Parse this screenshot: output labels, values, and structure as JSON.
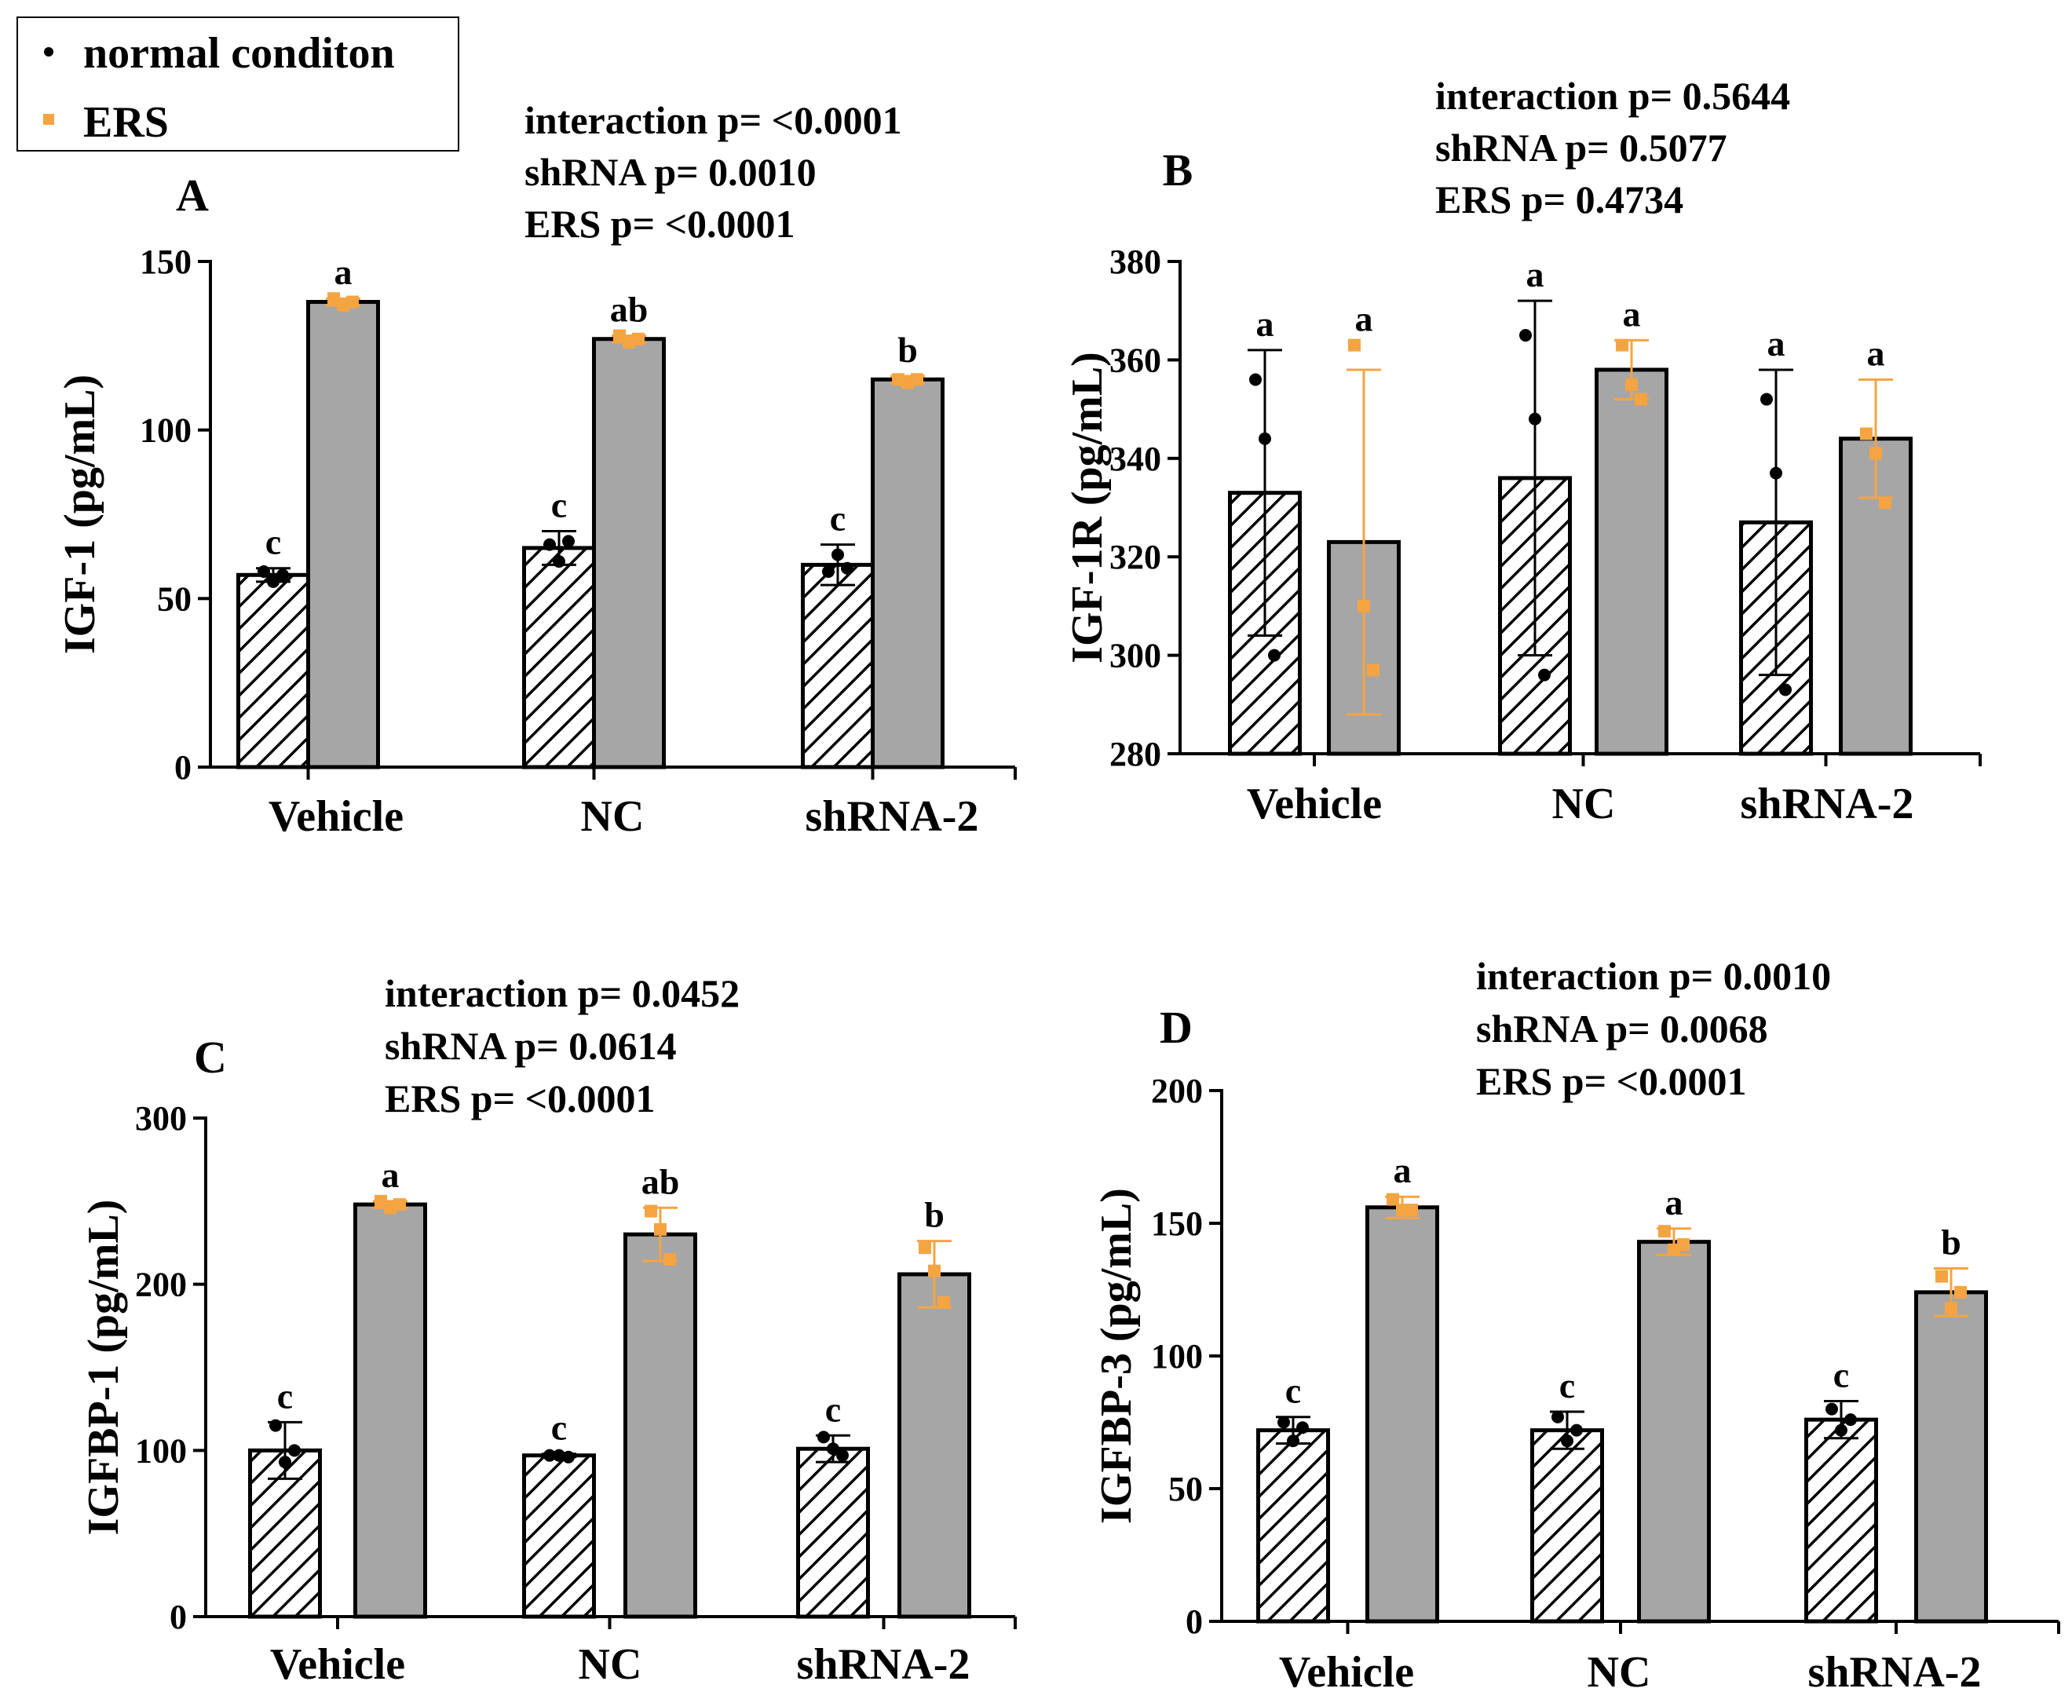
{
  "legend": {
    "items": [
      {
        "label": "normal conditon",
        "color": "#000000",
        "marker": "circle"
      },
      {
        "label": "ERS",
        "color": "#f5a442",
        "marker": "square"
      }
    ]
  },
  "colors": {
    "normal_bar": "hatched-white",
    "ers_bar": "#a6a6a6",
    "ers_points": "#f5a442",
    "normal_points": "#000000"
  },
  "chart_data": [
    {
      "type": "bar",
      "panel": "A",
      "ylabel": "IGF-1 (pg/mL)",
      "categories": [
        "Vehicle",
        "NC",
        "shRNA-2"
      ],
      "ylim": [
        0,
        150
      ],
      "yticks": [
        0,
        50,
        100,
        150
      ],
      "stats": [
        "interaction p= <0.0001",
        "shRNA p= 0.0010",
        "ERS p= <0.0001"
      ],
      "series": [
        {
          "name": "normal conditon",
          "values": [
            57,
            65,
            60
          ],
          "sd": [
            2,
            5,
            6
          ],
          "points": [
            [
              58,
              55,
              57
            ],
            [
              66,
              61,
              67
            ],
            [
              58,
              63,
              59
            ]
          ],
          "letters": [
            "c",
            "c",
            "c"
          ]
        },
        {
          "name": "ERS",
          "values": [
            138,
            127,
            115
          ],
          "sd": [
            1,
            1,
            1
          ],
          "points": [
            [
              139,
              137,
              138
            ],
            [
              128,
              126,
              127
            ],
            [
              115,
              114,
              115
            ]
          ],
          "letters": [
            "a",
            "ab",
            "b"
          ]
        }
      ]
    },
    {
      "type": "bar",
      "panel": "B",
      "ylabel": "IGF-1R (pg/mL)",
      "categories": [
        "Vehicle",
        "NC",
        "shRNA-2"
      ],
      "ylim": [
        280,
        380
      ],
      "yticks": [
        280,
        300,
        320,
        340,
        360,
        380
      ],
      "stats": [
        "interaction p= 0.5644",
        "shRNA p= 0.5077",
        "ERS p= 0.4734"
      ],
      "series": [
        {
          "name": "normal conditon",
          "values": [
            333,
            336,
            327
          ],
          "sd": [
            29,
            36,
            31
          ],
          "points": [
            [
              356,
              344,
              300
            ],
            [
              365,
              348,
              296
            ],
            [
              352,
              337,
              293
            ]
          ],
          "letters": [
            "a",
            "a",
            "a"
          ]
        },
        {
          "name": "ERS",
          "values": [
            323,
            358,
            344
          ],
          "sd": [
            35,
            6,
            12
          ],
          "points": [
            [
              363,
              310,
              297
            ],
            [
              363,
              355,
              352
            ],
            [
              345,
              341,
              331
            ]
          ],
          "letters": [
            "a",
            "a",
            "a"
          ]
        }
      ]
    },
    {
      "type": "bar",
      "panel": "C",
      "ylabel": "IGFBP-1 (pg/mL)",
      "categories": [
        "Vehicle",
        "NC",
        "shRNA-2"
      ],
      "ylim": [
        0,
        300
      ],
      "yticks": [
        0,
        100,
        200,
        300
      ],
      "stats": [
        "interaction p= 0.0452",
        "shRNA p= 0.0614",
        "ERS p= <0.0001"
      ],
      "series": [
        {
          "name": "normal conditon",
          "values": [
            100,
            97,
            101
          ],
          "sd": [
            17,
            1,
            8
          ],
          "points": [
            [
              115,
              93,
              100
            ],
            [
              97,
              97,
              96
            ],
            [
              108,
              101,
              97
            ]
          ],
          "letters": [
            "c",
            "c",
            "c"
          ]
        },
        {
          "name": "ERS",
          "values": [
            248,
            230,
            206
          ],
          "sd": [
            2,
            16,
            20
          ],
          "points": [
            [
              250,
              246,
              248
            ],
            [
              244,
              233,
              215
            ],
            [
              222,
              208,
              189
            ]
          ],
          "letters": [
            "a",
            "ab",
            "b"
          ]
        }
      ]
    },
    {
      "type": "bar",
      "panel": "D",
      "ylabel": "IGFBP-3 (pg/mL)",
      "categories": [
        "Vehicle",
        "NC",
        "shRNA-2"
      ],
      "ylim": [
        0,
        200
      ],
      "yticks": [
        0,
        50,
        100,
        150,
        200
      ],
      "stats": [
        "interaction p= 0.0010",
        "shRNA p= 0.0068",
        "ERS p= <0.0001"
      ],
      "series": [
        {
          "name": "normal conditon",
          "values": [
            72,
            72,
            76
          ],
          "sd": [
            5,
            7,
            7
          ],
          "points": [
            [
              75,
              68,
              73
            ],
            [
              77,
              68,
              72
            ],
            [
              80,
              72,
              76
            ]
          ],
          "letters": [
            "c",
            "c",
            "c"
          ]
        },
        {
          "name": "ERS",
          "values": [
            156,
            143,
            124
          ],
          "sd": [
            4,
            5,
            9
          ],
          "points": [
            [
              159,
              155,
              155
            ],
            [
              147,
              140,
              142
            ],
            [
              130,
              118,
              124
            ]
          ],
          "letters": [
            "a",
            "a",
            "b"
          ]
        }
      ]
    }
  ]
}
